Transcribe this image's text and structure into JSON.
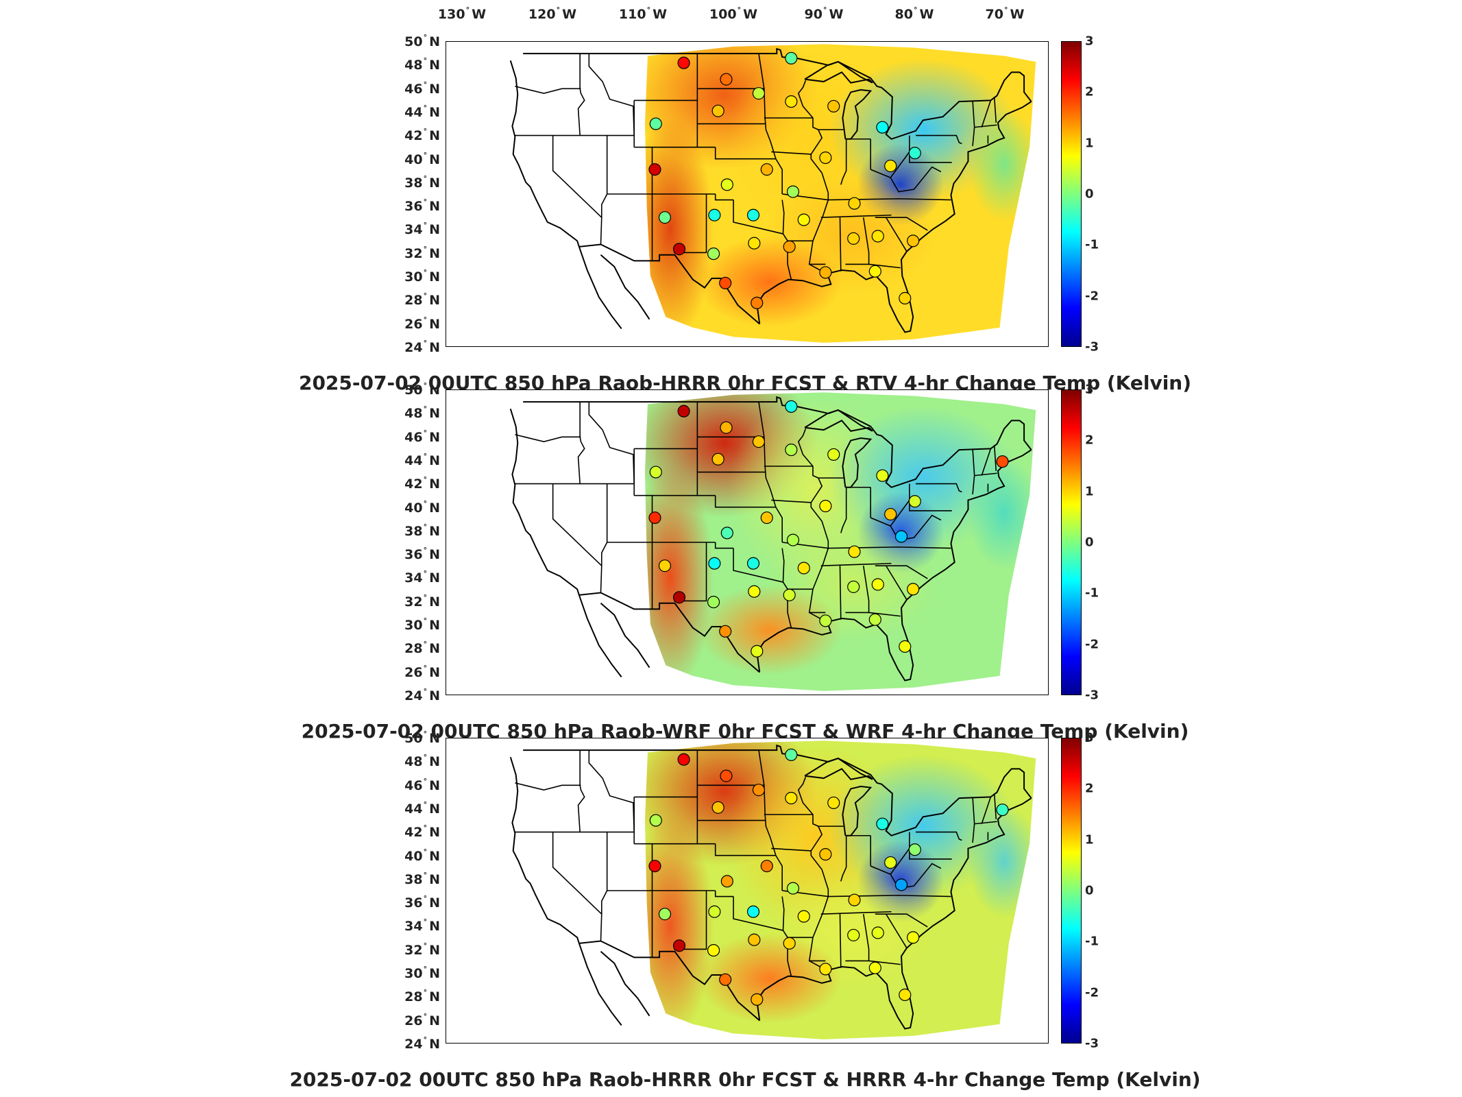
{
  "lon_labels": [
    {
      "lon": -130,
      "num": "130",
      "dir": "W"
    },
    {
      "lon": -120,
      "num": "120",
      "dir": "W"
    },
    {
      "lon": -110,
      "num": "110",
      "dir": "W"
    },
    {
      "lon": -100,
      "num": "100",
      "dir": "W"
    },
    {
      "lon": -90,
      "num": "90",
      "dir": "W"
    },
    {
      "lon": -80,
      "num": "80",
      "dir": "W"
    },
    {
      "lon": -70,
      "num": "70",
      "dir": "W"
    }
  ],
  "lat_labels": [
    {
      "lat": 50,
      "num": "50",
      "dir": "N"
    },
    {
      "lat": 48,
      "num": "48",
      "dir": "N"
    },
    {
      "lat": 46,
      "num": "46",
      "dir": "N"
    },
    {
      "lat": 44,
      "num": "44",
      "dir": "N"
    },
    {
      "lat": 42,
      "num": "42",
      "dir": "N"
    },
    {
      "lat": 40,
      "num": "40",
      "dir": "N"
    },
    {
      "lat": 38,
      "num": "38",
      "dir": "N"
    },
    {
      "lat": 36,
      "num": "36",
      "dir": "N"
    },
    {
      "lat": 34,
      "num": "34",
      "dir": "N"
    },
    {
      "lat": 32,
      "num": "32",
      "dir": "N"
    },
    {
      "lat": 30,
      "num": "30",
      "dir": "N"
    },
    {
      "lat": 28,
      "num": "28",
      "dir": "N"
    },
    {
      "lat": 26,
      "num": "26",
      "dir": "N"
    },
    {
      "lat": 24,
      "num": "24",
      "dir": "N"
    }
  ],
  "colorbar": {
    "colormap": "jet",
    "range": [
      -3,
      3
    ],
    "ticks": [
      {
        "value": 3,
        "label": "3"
      },
      {
        "value": 2,
        "label": "2"
      },
      {
        "value": 1,
        "label": "1"
      },
      {
        "value": 0,
        "label": "0"
      },
      {
        "value": -1,
        "label": "-1"
      },
      {
        "value": -2,
        "label": "-2"
      },
      {
        "value": -3,
        "label": "-3"
      }
    ]
  },
  "panels": [
    {
      "title": "2025-07-02 00UTC 850 hPa Raob-HRRR 0hr FCST & RTV 4-hr Change Temp (Kelvin)",
      "colors": {
        "upper_plains": "#f05a14",
        "west_edge": "#e04010",
        "midwest": "#ffd21e",
        "east": "#32c8ff",
        "east_dark": "#143cd2",
        "southeast": "#ffbe1e",
        "gulf_coast": "#ff6e14",
        "atlantic": "#ffdc28",
        "ocean_cool": "#78e68c"
      },
      "raobs": [
        {
          "lon": -105.5,
          "lat": 48.2,
          "value": 2.2
        },
        {
          "lon": -100.8,
          "lat": 46.8,
          "value": 1.6
        },
        {
          "lon": -97.2,
          "lat": 45.6,
          "value": 0.4
        },
        {
          "lon": -93.6,
          "lat": 44.9,
          "value": 0.9
        },
        {
          "lon": -93.6,
          "lat": 48.6,
          "value": -0.2
        },
        {
          "lon": -101.7,
          "lat": 44.1,
          "value": 1.1
        },
        {
          "lon": -108.6,
          "lat": 43.0,
          "value": -0.2
        },
        {
          "lon": -108.7,
          "lat": 39.1,
          "value": 2.5
        },
        {
          "lon": -107.6,
          "lat": 35.0,
          "value": -0.1
        },
        {
          "lon": -102.1,
          "lat": 35.2,
          "value": -0.6
        },
        {
          "lon": -97.8,
          "lat": 35.2,
          "value": -0.6
        },
        {
          "lon": -100.7,
          "lat": 37.8,
          "value": 0.6
        },
        {
          "lon": -96.3,
          "lat": 39.1,
          "value": 1.2
        },
        {
          "lon": -93.4,
          "lat": 37.2,
          "value": 0.2
        },
        {
          "lon": -89.8,
          "lat": 40.1,
          "value": 1.0
        },
        {
          "lon": -88.9,
          "lat": 44.5,
          "value": 1.1
        },
        {
          "lon": -83.5,
          "lat": 42.7,
          "value": -0.7
        },
        {
          "lon": -82.6,
          "lat": 39.4,
          "value": 0.9
        },
        {
          "lon": -79.9,
          "lat": 40.5,
          "value": -0.5
        },
        {
          "lon": -86.6,
          "lat": 36.2,
          "value": 1.0
        },
        {
          "lon": -92.2,
          "lat": 34.8,
          "value": 0.8
        },
        {
          "lon": -102.2,
          "lat": 31.9,
          "value": 0.2
        },
        {
          "lon": -97.7,
          "lat": 32.8,
          "value": 0.9
        },
        {
          "lon": -93.8,
          "lat": 32.5,
          "value": 1.3
        },
        {
          "lon": -86.7,
          "lat": 33.2,
          "value": 1.0
        },
        {
          "lon": -84.0,
          "lat": 33.4,
          "value": 0.9
        },
        {
          "lon": -80.1,
          "lat": 33.0,
          "value": 1.1
        },
        {
          "lon": -89.8,
          "lat": 30.3,
          "value": 1.2
        },
        {
          "lon": -84.3,
          "lat": 30.4,
          "value": 0.8
        },
        {
          "lon": -97.4,
          "lat": 27.7,
          "value": 1.5
        },
        {
          "lon": -81.0,
          "lat": 28.1,
          "value": 1.0
        },
        {
          "lon": -106.0,
          "lat": 32.3,
          "value": 2.6
        },
        {
          "lon": -100.9,
          "lat": 29.4,
          "value": 1.8
        }
      ]
    },
    {
      "title": "2025-07-02 00UTC 850 hPa Raob-WRF 0hr FCST & WRF 4-hr Change Temp (Kelvin)",
      "colors": {
        "upper_plains": "#d21e0a",
        "west_edge": "#f04614",
        "midwest": "#dcf05a",
        "east": "#46c8f0",
        "east_dark": "#1e50e6",
        "southeast": "#c8f064",
        "gulf_coast": "#ff8c1e",
        "atlantic": "#a0f08c",
        "ocean_cool": "#50dcbe"
      },
      "raobs": [
        {
          "lon": -105.5,
          "lat": 48.2,
          "value": 2.6
        },
        {
          "lon": -100.8,
          "lat": 46.8,
          "value": 1.2
        },
        {
          "lon": -97.2,
          "lat": 45.6,
          "value": 1.1
        },
        {
          "lon": -93.6,
          "lat": 44.9,
          "value": 0.3
        },
        {
          "lon": -93.6,
          "lat": 48.6,
          "value": -0.6
        },
        {
          "lon": -101.7,
          "lat": 44.1,
          "value": 1.1
        },
        {
          "lon": -108.6,
          "lat": 43.0,
          "value": 0.5
        },
        {
          "lon": -108.7,
          "lat": 39.1,
          "value": 2.0
        },
        {
          "lon": -107.6,
          "lat": 35.0,
          "value": 1.0
        },
        {
          "lon": -102.1,
          "lat": 35.2,
          "value": -0.7
        },
        {
          "lon": -97.8,
          "lat": 35.2,
          "value": -0.6
        },
        {
          "lon": -100.7,
          "lat": 37.8,
          "value": -0.3
        },
        {
          "lon": -96.3,
          "lat": 39.1,
          "value": 1.1
        },
        {
          "lon": -93.4,
          "lat": 37.2,
          "value": 0.3
        },
        {
          "lon": -89.8,
          "lat": 40.1,
          "value": 0.8
        },
        {
          "lon": -88.9,
          "lat": 44.5,
          "value": 0.6
        },
        {
          "lon": -83.5,
          "lat": 42.7,
          "value": 0.6
        },
        {
          "lon": -82.6,
          "lat": 39.4,
          "value": 1.1
        },
        {
          "lon": -79.9,
          "lat": 40.5,
          "value": 0.5
        },
        {
          "lon": -86.6,
          "lat": 36.2,
          "value": 0.9
        },
        {
          "lon": -92.2,
          "lat": 34.8,
          "value": 0.9
        },
        {
          "lon": -102.2,
          "lat": 31.9,
          "value": 0.2
        },
        {
          "lon": -97.7,
          "lat": 32.8,
          "value": 0.7
        },
        {
          "lon": -93.8,
          "lat": 32.5,
          "value": 0.5
        },
        {
          "lon": -86.7,
          "lat": 33.2,
          "value": 0.4
        },
        {
          "lon": -84.0,
          "lat": 33.4,
          "value": 0.7
        },
        {
          "lon": -80.1,
          "lat": 33.0,
          "value": 0.9
        },
        {
          "lon": -89.8,
          "lat": 30.3,
          "value": 0.4
        },
        {
          "lon": -84.3,
          "lat": 30.4,
          "value": 0.4
        },
        {
          "lon": -97.4,
          "lat": 27.7,
          "value": 0.6
        },
        {
          "lon": -81.0,
          "lat": 28.1,
          "value": 0.7
        },
        {
          "lon": -106.0,
          "lat": 32.3,
          "value": 2.7
        },
        {
          "lon": -100.9,
          "lat": 29.4,
          "value": 1.4
        },
        {
          "lon": -81.4,
          "lat": 37.5,
          "value": -1.1
        },
        {
          "lon": -70.2,
          "lat": 43.9,
          "value": 1.8
        }
      ]
    },
    {
      "title": "2025-07-02 00UTC 850 hPa Raob-HRRR 0hr FCST & HRRR 4-hr Change Temp (Kelvin)",
      "colors": {
        "upper_plains": "#dc320f",
        "west_edge": "#f0501e",
        "midwest": "#ffc81e",
        "east": "#3cc8f5",
        "east_dark": "#1e3cdc",
        "southeast": "#e6f04b",
        "gulf_coast": "#ff781e",
        "atlantic": "#d2ee50",
        "ocean_cool": "#5ad2d2"
      },
      "raobs": [
        {
          "lon": -105.5,
          "lat": 48.2,
          "value": 2.3
        },
        {
          "lon": -100.8,
          "lat": 46.8,
          "value": 1.8
        },
        {
          "lon": -97.2,
          "lat": 45.6,
          "value": 1.4
        },
        {
          "lon": -93.6,
          "lat": 44.9,
          "value": 0.9
        },
        {
          "lon": -93.6,
          "lat": 48.6,
          "value": -0.2
        },
        {
          "lon": -101.7,
          "lat": 44.1,
          "value": 1.1
        },
        {
          "lon": -108.6,
          "lat": 43.0,
          "value": 0.3
        },
        {
          "lon": -108.7,
          "lat": 39.1,
          "value": 2.3
        },
        {
          "lon": -107.6,
          "lat": 35.0,
          "value": 0.2
        },
        {
          "lon": -102.1,
          "lat": 35.2,
          "value": 0.5
        },
        {
          "lon": -97.8,
          "lat": 35.2,
          "value": -0.7
        },
        {
          "lon": -100.7,
          "lat": 37.8,
          "value": 1.3
        },
        {
          "lon": -96.3,
          "lat": 39.1,
          "value": 1.5
        },
        {
          "lon": -93.4,
          "lat": 37.2,
          "value": 0.3
        },
        {
          "lon": -89.8,
          "lat": 40.1,
          "value": 1.1
        },
        {
          "lon": -88.9,
          "lat": 44.5,
          "value": 0.9
        },
        {
          "lon": -83.5,
          "lat": 42.7,
          "value": -0.6
        },
        {
          "lon": -82.6,
          "lat": 39.4,
          "value": 0.6
        },
        {
          "lon": -79.9,
          "lat": 40.5,
          "value": 0.1
        },
        {
          "lon": -86.6,
          "lat": 36.2,
          "value": 1.0
        },
        {
          "lon": -92.2,
          "lat": 34.8,
          "value": 0.8
        },
        {
          "lon": -102.2,
          "lat": 31.9,
          "value": 0.8
        },
        {
          "lon": -97.7,
          "lat": 32.8,
          "value": 1.1
        },
        {
          "lon": -93.8,
          "lat": 32.5,
          "value": 1.0
        },
        {
          "lon": -86.7,
          "lat": 33.2,
          "value": 0.6
        },
        {
          "lon": -84.0,
          "lat": 33.4,
          "value": 0.6
        },
        {
          "lon": -80.1,
          "lat": 33.0,
          "value": 0.7
        },
        {
          "lon": -89.8,
          "lat": 30.3,
          "value": 0.9
        },
        {
          "lon": -84.3,
          "lat": 30.4,
          "value": 0.7
        },
        {
          "lon": -97.4,
          "lat": 27.7,
          "value": 1.2
        },
        {
          "lon": -81.0,
          "lat": 28.1,
          "value": 0.9
        },
        {
          "lon": -106.0,
          "lat": 32.3,
          "value": 2.6
        },
        {
          "lon": -100.9,
          "lat": 29.4,
          "value": 1.6
        },
        {
          "lon": -81.4,
          "lat": 37.5,
          "value": -1.3
        },
        {
          "lon": -70.2,
          "lat": 43.9,
          "value": -0.4
        }
      ]
    }
  ]
}
